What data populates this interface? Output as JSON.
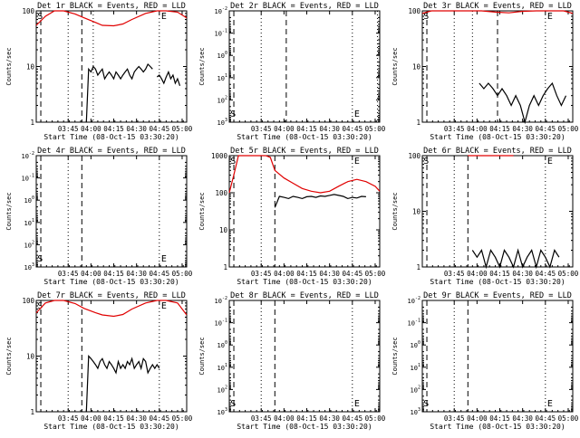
{
  "figure": {
    "xlabel_template": "Start Time ({date})",
    "ylabel": "Counts/sec",
    "marker_start": "S",
    "marker_end": "E",
    "event_color": "#000000",
    "lld_color": "#e00000"
  },
  "chart_data": [
    {
      "type": "line",
      "title": "Det 1r BLACK = Events, RED = LLD",
      "date": "08-Oct-15 03:30:20",
      "x_ticks": [
        "03:45",
        "04:00",
        "04:15",
        "04:30",
        "04:45",
        "05:00"
      ],
      "y_scale": "log",
      "y_ticks": [
        "1",
        "10",
        "100"
      ],
      "ylim": [
        1,
        100
      ],
      "series": [
        {
          "name": "LLD",
          "color": "#e00000",
          "x": [
            0,
            4,
            8,
            12,
            17,
            21,
            26,
            29,
            34,
            38,
            42,
            48,
            53,
            57,
            62,
            66
          ],
          "y": [
            55,
            80,
            100,
            100,
            88,
            75,
            62,
            55,
            54,
            58,
            70,
            90,
            100,
            100,
            95,
            75
          ]
        },
        {
          "name": "Events",
          "color": "#000000",
          "gaps": true,
          "x": [
            0.2,
            1,
            2,
            3,
            4,
            5,
            6,
            7,
            8,
            9,
            10,
            11,
            12,
            13,
            14,
            15,
            16,
            17,
            18,
            19,
            20,
            21,
            22,
            23,
            24,
            25,
            26,
            27,
            28,
            29,
            30,
            31,
            32,
            33,
            34,
            35,
            36,
            37,
            38,
            39,
            40,
            41,
            42,
            43,
            44,
            45,
            46,
            47,
            48,
            49,
            50,
            51,
            52,
            53,
            54,
            55,
            56,
            57,
            58,
            59,
            60,
            61,
            62,
            63,
            64,
            65
          ],
          "y": [
            null,
            null,
            null,
            null,
            null,
            null,
            null,
            null,
            null,
            null,
            null,
            null,
            null,
            null,
            null,
            null,
            null,
            null,
            null,
            null,
            null,
            null,
            1,
            9,
            8,
            10,
            9,
            7,
            8,
            9,
            6,
            7,
            8,
            7,
            6,
            8,
            7,
            6,
            7,
            8,
            9,
            7,
            6,
            8,
            9,
            10,
            9,
            8,
            9,
            11,
            10,
            9,
            null,
            6.5,
            7,
            6,
            5,
            6.5,
            8,
            6,
            7,
            5,
            6,
            4.5,
            null,
            null
          ]
        }
      ],
      "markers": {
        "dotted": [
          14,
          25,
          54
        ],
        "dashed": [
          2,
          20
        ]
      }
    },
    {
      "type": "line",
      "title": "Det 2r BLACK = Events, RED = LLD",
      "date": "08-Oct-15 03:30:20",
      "x_ticks": [
        "03:45",
        "04:00",
        "04:15",
        "04:30",
        "04:45",
        "05:00"
      ],
      "y_scale": "log",
      "y_ticks": [
        "10^-2",
        "10^-1",
        "10^0",
        "10^1",
        "10^2",
        "10^3"
      ],
      "y_display": "inv",
      "ylim": [
        1,
        1000000
      ],
      "series": [],
      "markers": {
        "dotted": [
          14,
          54,
          65
        ],
        "dashed": [
          2,
          25
        ]
      }
    },
    {
      "type": "line",
      "title": "Det 3r BLACK = Events, RED = LLD",
      "date": "08-Oct-15 03:30:20",
      "x_ticks": [
        "03:45",
        "04:00",
        "04:15",
        "04:30",
        "04:45",
        "05:00"
      ],
      "y_scale": "log",
      "y_ticks": [
        "1",
        "10",
        "100"
      ],
      "ylim": [
        1,
        100
      ],
      "series": [
        {
          "name": "LLD",
          "color": "#e00000",
          "x": [
            0,
            4,
            8,
            14,
            20,
            26,
            32,
            38,
            44,
            50,
            56,
            62,
            66
          ],
          "y": [
            90,
            100,
            100,
            100,
            100,
            100,
            95,
            92,
            98,
            100,
            100,
            100,
            90
          ]
        },
        {
          "name": "Events",
          "color": "#000000",
          "x": [
            25,
            27,
            29,
            31,
            33,
            35,
            37,
            39,
            41,
            43,
            45,
            47,
            49,
            51,
            53,
            55,
            57,
            59,
            61,
            63
          ],
          "y": [
            5,
            4,
            5,
            4,
            3,
            4,
            3,
            2,
            3,
            2,
            1,
            2,
            3,
            2,
            3,
            4,
            5,
            3,
            2,
            3
          ]
        }
      ],
      "markers": {
        "dotted": [
          14,
          22,
          54
        ],
        "dashed": [
          2,
          33
        ]
      }
    },
    {
      "type": "line",
      "title": "Det 4r BLACK = Events, RED = LLD",
      "date": "08-Oct-15 03:30:20",
      "x_ticks": [
        "03:45",
        "04:00",
        "04:15",
        "04:30",
        "04:45",
        "05:00"
      ],
      "y_scale": "log",
      "y_ticks": [
        "10^-2",
        "10^-1",
        "10^0",
        "10^1",
        "10^2",
        "10^3"
      ],
      "y_display": "inv",
      "ylim": [
        1,
        1000000
      ],
      "series": [],
      "markers": {
        "dotted": [
          14,
          54
        ],
        "dashed": [
          2,
          20
        ]
      }
    },
    {
      "type": "line",
      "title": "Det 5r BLACK = Events, RED = LLD",
      "date": "08-Oct-15 03:30:20",
      "x_ticks": [
        "03:45",
        "04:00",
        "04:15",
        "04:30",
        "04:45",
        "05:00"
      ],
      "y_scale": "log",
      "y_ticks": [
        "1",
        "10",
        "100",
        "1000"
      ],
      "ylim": [
        1,
        1000
      ],
      "series": [
        {
          "name": "LLD",
          "color": "#e00000",
          "x": [
            0,
            2,
            4,
            6,
            8,
            10,
            12,
            14,
            16,
            18,
            20,
            24,
            28,
            32,
            36,
            40,
            44,
            48,
            52,
            56,
            60,
            64,
            66
          ],
          "y": [
            100,
            300,
            1000,
            1000,
            1000,
            1000,
            1000,
            1000,
            1000,
            900,
            400,
            250,
            180,
            130,
            110,
            100,
            110,
            150,
            200,
            230,
            200,
            150,
            110
          ]
        },
        {
          "name": "Events",
          "color": "#000000",
          "x": [
            20,
            22,
            24,
            26,
            28,
            30,
            32,
            34,
            36,
            38,
            40,
            42,
            44,
            46,
            48,
            50,
            52,
            54,
            56,
            58,
            60
          ],
          "y": [
            40,
            80,
            75,
            70,
            80,
            75,
            70,
            78,
            80,
            75,
            82,
            80,
            85,
            90,
            85,
            80,
            70,
            75,
            72,
            80,
            78
          ]
        }
      ],
      "markers": {
        "dotted": [
          14,
          54
        ],
        "dashed": [
          2,
          20
        ]
      }
    },
    {
      "type": "line",
      "title": "Det 6r BLACK = Events, RED = LLD",
      "date": "08-Oct-15 03:30:20",
      "x_ticks": [
        "03:45",
        "04:00",
        "04:15",
        "04:30",
        "04:45",
        "05:00"
      ],
      "y_scale": "log",
      "y_ticks": [
        "1",
        "10",
        "100"
      ],
      "ylim": [
        1,
        100
      ],
      "series": [
        {
          "name": "LLD",
          "color": "#e00000",
          "x": [
            20,
            30,
            40
          ],
          "y": [
            100,
            100,
            100
          ]
        },
        {
          "name": "Events",
          "color": "#000000",
          "x": [
            22,
            24,
            26,
            28,
            30,
            32,
            34,
            36,
            38,
            40,
            42,
            44,
            46,
            48,
            50,
            52,
            54,
            56,
            58,
            60
          ],
          "y": [
            2,
            1.5,
            2,
            1,
            2,
            1.5,
            1,
            2,
            1.5,
            1,
            2,
            1,
            1.5,
            2,
            1,
            2,
            1.5,
            1,
            2,
            1.5
          ]
        }
      ],
      "markers": {
        "dotted": [
          14,
          54
        ],
        "dashed": [
          2,
          20
        ]
      }
    },
    {
      "type": "line",
      "title": "Det 7r BLACK = Events, RED = LLD",
      "date": "08-Oct-15 03:30:20",
      "x_ticks": [
        "03:45",
        "04:00",
        "04:15",
        "04:30",
        "04:45",
        "05:00"
      ],
      "y_scale": "log",
      "y_ticks": [
        "1",
        "10",
        "100"
      ],
      "ylim": [
        1,
        100
      ],
      "series": [
        {
          "name": "LLD",
          "color": "#e00000",
          "x": [
            0,
            4,
            8,
            12,
            17,
            21,
            26,
            29,
            34,
            38,
            42,
            48,
            53,
            57,
            62,
            66
          ],
          "y": [
            60,
            90,
            100,
            100,
            88,
            72,
            60,
            55,
            52,
            56,
            70,
            90,
            100,
            100,
            90,
            55
          ]
        },
        {
          "name": "Events",
          "color": "#000000",
          "x": [
            22,
            23,
            24,
            25,
            26,
            27,
            28,
            29,
            30,
            31,
            32,
            33,
            34,
            35,
            36,
            37,
            38,
            39,
            40,
            41,
            42,
            43,
            44,
            45,
            46,
            47,
            48,
            49,
            50,
            51,
            52,
            53,
            54
          ],
          "y": [
            1,
            10,
            9,
            8,
            7,
            6,
            8,
            9,
            7,
            6,
            8,
            7,
            6,
            5,
            8,
            6,
            7,
            6,
            8,
            7,
            9,
            6,
            7,
            8,
            6,
            9,
            8,
            5,
            6,
            7,
            6,
            7,
            6
          ]
        }
      ],
      "markers": {
        "dotted": [
          14,
          54
        ],
        "dashed": [
          2,
          20
        ]
      }
    },
    {
      "type": "line",
      "title": "Det 8r BLACK = Events, RED = LLD",
      "date": "08-Oct-15 03:30:20",
      "x_ticks": [
        "03:45",
        "04:00",
        "04:15",
        "04:30",
        "04:45",
        "05:00"
      ],
      "y_scale": "log",
      "y_ticks": [
        "10^-2",
        "10^-1",
        "10^0",
        "10^1",
        "10^2",
        "10^3"
      ],
      "y_display": "inv",
      "ylim": [
        1,
        1000000
      ],
      "series": [],
      "markers": {
        "dotted": [
          14,
          54
        ],
        "dashed": [
          2,
          20
        ]
      }
    },
    {
      "type": "line",
      "title": "Det 9r BLACK = Events, RED = LLD",
      "date": "08-Oct-15 03:30:20",
      "x_ticks": [
        "03:45",
        "04:00",
        "04:15",
        "04:30",
        "04:45",
        "05:00"
      ],
      "y_scale": "log",
      "y_ticks": [
        "10^-2",
        "10^-1",
        "10^0",
        "10^1",
        "10^2",
        "10^3"
      ],
      "y_display": "inv",
      "ylim": [
        1,
        1000000
      ],
      "series": [],
      "markers": {
        "dotted": [
          14,
          54
        ],
        "dashed": [
          2,
          20
        ]
      }
    }
  ]
}
